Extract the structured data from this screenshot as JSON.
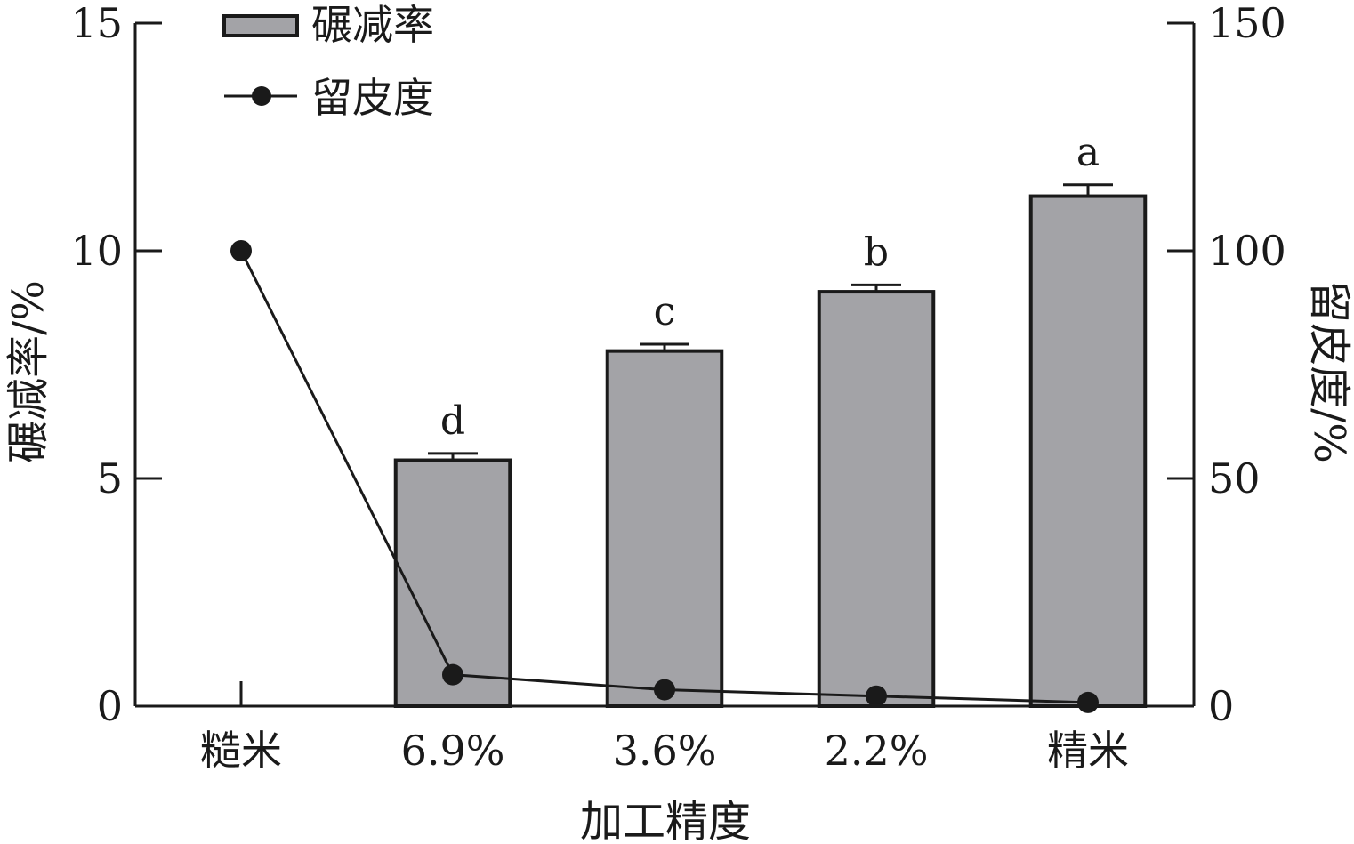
{
  "chart_data": {
    "type": "bar",
    "categories": [
      "糙米",
      "6.9%",
      "3.6%",
      "2.2%",
      "精米"
    ],
    "xlabel": "加工精度",
    "ylabel": "碾减率/%",
    "y2label": "留皮度/%",
    "ylim": [
      0,
      15
    ],
    "y2lim": [
      0,
      150
    ],
    "yticks": [
      0,
      5,
      10,
      15
    ],
    "y2ticks": [
      0,
      50,
      100,
      150
    ],
    "grid": false,
    "legend_position": "top-left",
    "series": [
      {
        "name": "碾减率",
        "type": "bar",
        "axis": "left",
        "values": [
          null,
          5.4,
          7.8,
          9.1,
          11.2
        ],
        "errors": [
          null,
          0.15,
          0.15,
          0.15,
          0.25
        ],
        "labels": [
          "",
          "d",
          "c",
          "b",
          "a"
        ],
        "color": "#a3a3a7"
      },
      {
        "name": "留皮度",
        "type": "line",
        "axis": "right",
        "values": [
          100,
          6.9,
          3.6,
          2.2,
          0.8
        ],
        "color": "#1a1a1a"
      }
    ]
  }
}
